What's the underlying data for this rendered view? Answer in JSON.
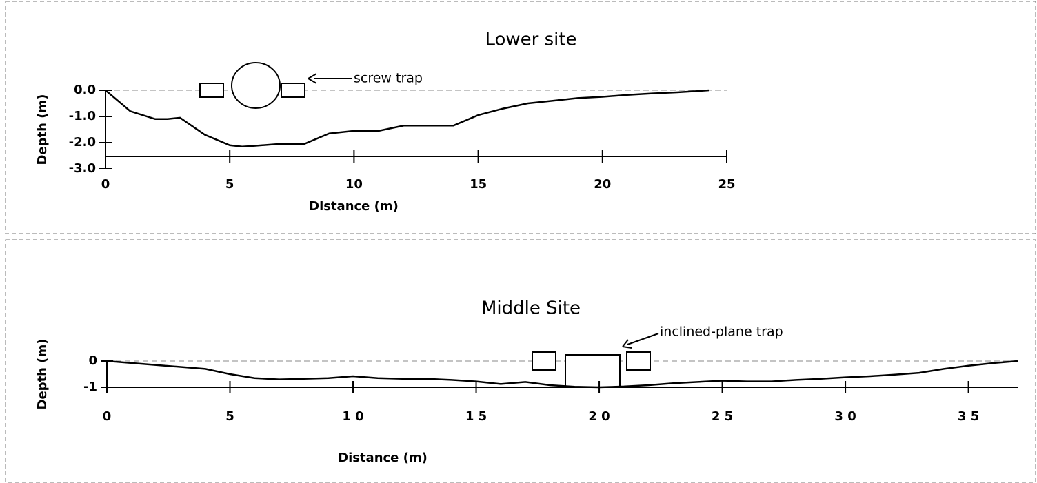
{
  "chart_data": [
    {
      "type": "line",
      "title": "Lower site",
      "x_label": "Distance (m)",
      "y_label": "Depth (m)",
      "x": [
        0,
        1,
        2,
        2.5,
        3,
        4,
        5,
        5.5,
        6,
        7,
        8,
        9,
        10,
        11,
        12,
        13,
        14,
        15,
        16,
        17,
        18,
        19,
        20,
        21,
        22,
        23,
        24,
        24.3
      ],
      "values": [
        0,
        -0.8,
        -1.1,
        -1.1,
        -1.05,
        -1.7,
        -2.1,
        -2.15,
        -2.12,
        -2.05,
        -2.05,
        -1.65,
        -1.55,
        -1.55,
        -1.35,
        -1.35,
        -1.35,
        -0.95,
        -0.7,
        -0.5,
        -0.4,
        -0.3,
        -0.25,
        -0.18,
        -0.12,
        -0.08,
        -0.02,
        0
      ],
      "color": "#000000",
      "xlim": [
        0,
        25
      ],
      "xticks": [
        0,
        5,
        10,
        15,
        20,
        25
      ],
      "ylim": [
        -3,
        0
      ],
      "yticks": [
        {
          "value": 0,
          "label": "0.0"
        },
        {
          "value": -1,
          "label": "-1.0"
        },
        {
          "value": -2,
          "label": "-2.0"
        },
        {
          "value": -3,
          "label": "-3.0"
        }
      ],
      "annotation": "screw trap"
    },
    {
      "type": "line",
      "title": "Middle Site",
      "x_label": "Distance (m)",
      "y_label": "Depth (m)",
      "x": [
        0,
        2,
        4,
        5,
        6,
        7,
        8,
        9,
        10,
        11,
        12,
        13,
        14,
        15,
        16,
        17,
        18,
        19,
        20,
        21,
        22,
        23,
        24,
        25,
        26,
        27,
        28,
        29,
        30,
        31,
        32,
        33,
        34,
        35,
        36,
        37
      ],
      "values": [
        0,
        -0.15,
        -0.3,
        -0.5,
        -0.65,
        -0.7,
        -0.68,
        -0.65,
        -0.58,
        -0.65,
        -0.68,
        -0.68,
        -0.72,
        -0.78,
        -0.88,
        -0.8,
        -0.92,
        -0.98,
        -1,
        -0.97,
        -0.92,
        -0.85,
        -0.8,
        -0.75,
        -0.78,
        -0.78,
        -0.72,
        -0.68,
        -0.62,
        -0.58,
        -0.52,
        -0.45,
        -0.3,
        -0.18,
        -0.08,
        0
      ],
      "color": "#000000",
      "xlim": [
        0,
        37
      ],
      "xticks": [
        0,
        5,
        {
          "value": 10,
          "label": "1 0"
        },
        {
          "value": 15,
          "label": "1 5"
        },
        {
          "value": 20,
          "label": "2 0"
        },
        {
          "value": 25,
          "label": "2 5"
        },
        {
          "value": 30,
          "label": "3 0"
        },
        {
          "value": 35,
          "label": "3 5"
        }
      ],
      "ylim": [
        -1,
        0
      ],
      "yticks": [
        0,
        -1
      ],
      "annotation": "inclined-plane trap"
    }
  ]
}
